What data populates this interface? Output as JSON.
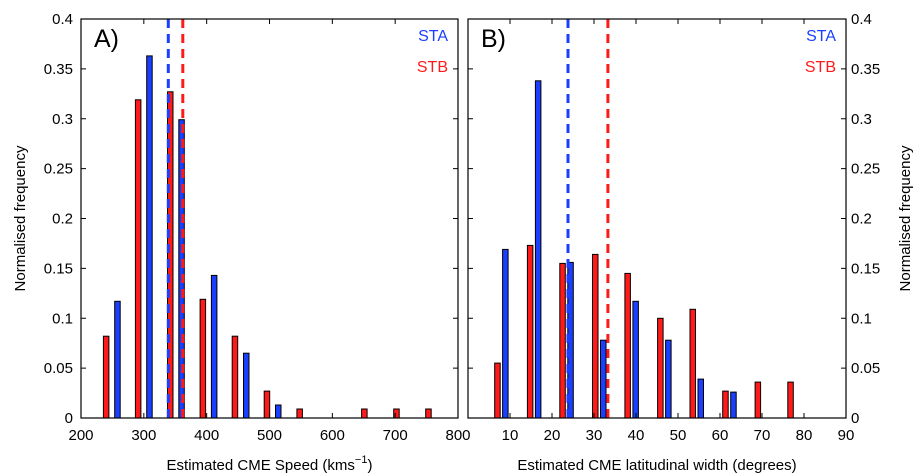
{
  "chart_data": [
    {
      "type": "bar",
      "panel_label": "A)",
      "xlabel_main": "Estimated CME Speed (kms",
      "xlabel_sup": "−1",
      "xlabel_tail": ")",
      "ylabel": "Normalised frequency",
      "xlim": [
        200,
        800
      ],
      "ylim": [
        0,
        0.4
      ],
      "xticks": [
        200,
        300,
        400,
        500,
        600,
        700,
        800
      ],
      "yticks": [
        0,
        0.05,
        0.1,
        0.15,
        0.2,
        0.25,
        0.3,
        0.35,
        0.4
      ],
      "yaxis_side": "left",
      "bar_width": 8.8,
      "series": [
        {
          "name": "STA",
          "color": "#1a3fff",
          "x": [
            258,
            309,
            360,
            412,
            463,
            514
          ],
          "values": [
            0.117,
            0.363,
            0.299,
            0.143,
            0.065,
            0.013
          ]
        },
        {
          "name": "STB",
          "color": "#ff1a1a",
          "x": [
            240,
            291,
            342,
            394,
            445,
            496,
            548,
            651,
            702,
            753
          ],
          "values": [
            0.082,
            0.319,
            0.327,
            0.119,
            0.082,
            0.027,
            0.009,
            0.009,
            0.009,
            0.009
          ]
        }
      ],
      "means": [
        {
          "name": "STA",
          "color": "#1a3fff",
          "x": 339
        },
        {
          "name": "STB",
          "color": "#ff1a1a",
          "x": 362
        }
      ],
      "legend": [
        {
          "label": "STA",
          "color": "#1a3fff"
        },
        {
          "label": "STB",
          "color": "#ff1a1a"
        }
      ]
    },
    {
      "type": "bar",
      "panel_label": "B)",
      "xlabel_main": "Estimated CME latitudinal width (degrees)",
      "xlabel_sup": "",
      "xlabel_tail": "",
      "ylabel": "Normalised frequency",
      "xlim": [
        0,
        90
      ],
      "ylim": [
        0,
        0.4
      ],
      "xticks": [
        10,
        20,
        30,
        40,
        50,
        60,
        70,
        80,
        90
      ],
      "yticks": [
        0,
        0.05,
        0.1,
        0.15,
        0.2,
        0.25,
        0.3,
        0.35,
        0.4
      ],
      "yaxis_side": "right",
      "bar_width": 1.3,
      "series": [
        {
          "name": "STA",
          "color": "#1a3fff",
          "x": [
            8.9,
            16.7,
            24.4,
            32.2,
            39.9,
            47.7,
            55.4,
            63.2
          ],
          "values": [
            0.169,
            0.338,
            0.156,
            0.078,
            0.117,
            0.078,
            0.039,
            0.026
          ]
        },
        {
          "name": "STB",
          "color": "#ff1a1a",
          "x": [
            7.0,
            14.8,
            22.5,
            30.3,
            38.0,
            45.8,
            53.5,
            61.3,
            69.0,
            76.8
          ],
          "values": [
            0.055,
            0.173,
            0.155,
            0.164,
            0.145,
            0.1,
            0.109,
            0.027,
            0.036,
            0.036
          ]
        }
      ],
      "means": [
        {
          "name": "STA",
          "color": "#1a3fff",
          "x": 23.8
        },
        {
          "name": "STB",
          "color": "#ff1a1a",
          "x": 33.3
        }
      ],
      "legend": [
        {
          "label": "STA",
          "color": "#1a3fff"
        },
        {
          "label": "STB",
          "color": "#ff1a1a"
        }
      ]
    }
  ]
}
